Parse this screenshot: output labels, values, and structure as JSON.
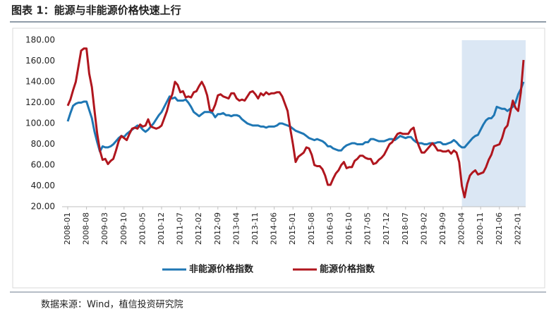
{
  "chart_data": {
    "type": "line",
    "title": "图表 1：能源与非能源价格快速上行",
    "source": "数据来源：Wind，植信投资研究院",
    "categories": [
      "2008-01",
      null,
      null,
      null,
      null,
      null,
      null,
      "2008-08",
      null,
      null,
      null,
      null,
      null,
      null,
      "2009-03",
      null,
      null,
      null,
      null,
      null,
      null,
      "2009-10",
      null,
      null,
      null,
      null,
      null,
      null,
      "2010-05",
      null,
      null,
      null,
      null,
      null,
      null,
      "2010-12",
      null,
      null,
      null,
      null,
      null,
      null,
      "2011-07",
      null,
      null,
      null,
      null,
      null,
      null,
      "2012-02",
      null,
      null,
      null,
      null,
      null,
      null,
      "2012-09",
      null,
      null,
      null,
      null,
      null,
      null,
      "2013-04",
      null,
      null,
      null,
      null,
      null,
      null,
      "2013-11",
      null,
      null,
      null,
      null,
      null,
      null,
      "2014-06",
      null,
      null,
      null,
      null,
      null,
      null,
      "2015-01",
      null,
      null,
      null,
      null,
      null,
      null,
      "2015-08",
      null,
      null,
      null,
      null,
      null,
      null,
      "2016-03",
      null,
      null,
      null,
      null,
      null,
      null,
      "2016-10",
      null,
      null,
      null,
      null,
      null,
      null,
      "2017-05",
      null,
      null,
      null,
      null,
      null,
      null,
      "2017-12",
      null,
      null,
      null,
      null,
      null,
      null,
      "2018-07",
      null,
      null,
      null,
      null,
      null,
      null,
      "2019-02",
      null,
      null,
      null,
      null,
      null,
      null,
      "2019-09",
      null,
      null,
      null,
      null,
      null,
      null,
      "2020-04",
      null,
      null,
      null,
      null,
      null,
      null,
      "2020-11",
      null,
      null,
      null,
      null,
      null,
      null,
      "2021-06",
      null,
      null,
      null,
      null,
      null,
      null,
      "2022-01",
      null,
      null
    ],
    "series": [
      {
        "name": "非能源价格指数",
        "color": "#1f77b4",
        "values": [
          102,
          110,
          117,
          119,
          120,
          120,
          121,
          121,
          113,
          105,
          92,
          82,
          73,
          78,
          77,
          77,
          78,
          80,
          83,
          86,
          88,
          87,
          90,
          92,
          94,
          96,
          98,
          97,
          94,
          92,
          94,
          97,
          100,
          104,
          108,
          111,
          116,
          121,
          126,
          124,
          125,
          122,
          122,
          122,
          123,
          120,
          116,
          111,
          109,
          107,
          109,
          111,
          111,
          111,
          110,
          106,
          109,
          109,
          110,
          108,
          108,
          107,
          108,
          108,
          107,
          104,
          102,
          100,
          99,
          98,
          98,
          98,
          97,
          97,
          96,
          97,
          97,
          97,
          98,
          100,
          100,
          99,
          98,
          97,
          95,
          93,
          92,
          91,
          90,
          88,
          86,
          85,
          84,
          85,
          84,
          83,
          81,
          78,
          78,
          76,
          75,
          74,
          74,
          77,
          79,
          80,
          81,
          81,
          80,
          80,
          80,
          82,
          82,
          85,
          85,
          84,
          83,
          83,
          83,
          84,
          85,
          85,
          84,
          86,
          88,
          87,
          86,
          87,
          87,
          84,
          82,
          81,
          81,
          80,
          80,
          81,
          81,
          81,
          82,
          82,
          80,
          80,
          81,
          82,
          84,
          82,
          79,
          77,
          77,
          80,
          83,
          86,
          88,
          89,
          94,
          99,
          103,
          105,
          105,
          108,
          116,
          115,
          114,
          114,
          112,
          114,
          116,
          120,
          128,
          133,
          140
        ]
      },
      {
        "name": "能源价格指数",
        "color": "#b0161e",
        "values": [
          117,
          123,
          132,
          140,
          155,
          170,
          172,
          172,
          148,
          135,
          112,
          90,
          74,
          65,
          66,
          61,
          64,
          66,
          74,
          83,
          88,
          86,
          84,
          90,
          95,
          96,
          95,
          99,
          97,
          98,
          104,
          97,
          96,
          95,
          96,
          98,
          105,
          112,
          122,
          128,
          140,
          137,
          130,
          131,
          125,
          126,
          125,
          130,
          131,
          136,
          140,
          135,
          127,
          113,
          112,
          118,
          127,
          128,
          126,
          125,
          124,
          129,
          129,
          124,
          122,
          123,
          122,
          126,
          130,
          131,
          128,
          124,
          129,
          127,
          130,
          128,
          129,
          129,
          130,
          130,
          126,
          119,
          112,
          95,
          80,
          63,
          68,
          70,
          72,
          77,
          76,
          70,
          60,
          59,
          59,
          56,
          50,
          41,
          41,
          47,
          52,
          55,
          60,
          63,
          57,
          58,
          58,
          64,
          66,
          69,
          69,
          67,
          66,
          66,
          61,
          62,
          65,
          67,
          70,
          75,
          80,
          82,
          86,
          90,
          91,
          90,
          90,
          90,
          94,
          96,
          85,
          78,
          72,
          72,
          75,
          78,
          81,
          78,
          74,
          74,
          73,
          73,
          74,
          71,
          74,
          72,
          63,
          40,
          29,
          42,
          50,
          53,
          55,
          51,
          52,
          53,
          58,
          65,
          70,
          78,
          79,
          80,
          86,
          95,
          98,
          110,
          122,
          115,
          112,
          130,
          161
        ]
      }
    ],
    "ylim": [
      20,
      180
    ],
    "yticks": [
      {
        "value": 20,
        "label": "20.00"
      },
      {
        "value": 40,
        "label": "40.00"
      },
      {
        "value": 60,
        "label": "60.00"
      },
      {
        "value": 80,
        "label": "80.00"
      },
      {
        "value": 100,
        "label": "100.00"
      },
      {
        "value": 120,
        "label": "120.00"
      },
      {
        "value": 140,
        "label": "140.00"
      },
      {
        "value": 160,
        "label": "160.00"
      },
      {
        "value": 180,
        "label": "180.00"
      }
    ],
    "grid": false,
    "shaded_from": "2020-04",
    "shade_color": "#dbe7f4",
    "legend": "bottom"
  }
}
